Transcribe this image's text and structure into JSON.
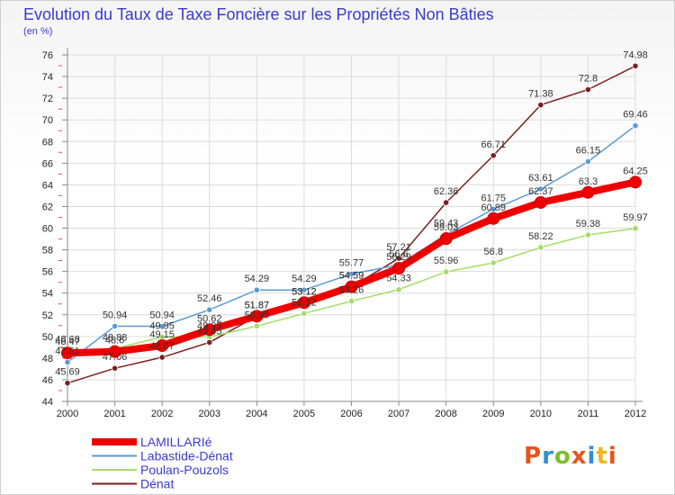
{
  "title": "Evolution du Taux de Taxe Foncière sur les Propriétés Non Bâties",
  "unit": "(en %)",
  "brand": {
    "text": "Proxiti",
    "colors": [
      "#e8541c",
      "#2f8fd6",
      "#7cbd2c",
      "#e8541c",
      "#2f8fd6",
      "#f2b61c",
      "#e8541c"
    ]
  },
  "chart_data": {
    "type": "line",
    "title": "Evolution du Taux de Taxe Foncière sur les Propriétés Non Bâties",
    "ylabel": "(en %)",
    "xlabel": "",
    "x": [
      "2000",
      "2001",
      "2002",
      "2003",
      "2004",
      "2005",
      "2006",
      "2007",
      "2008",
      "2009",
      "2010",
      "2011",
      "2012"
    ],
    "ylim": [
      44,
      76
    ],
    "yticks": [
      44,
      46,
      48,
      50,
      52,
      54,
      56,
      58,
      60,
      62,
      64,
      66,
      68,
      70,
      72,
      74,
      76
    ],
    "grid": true,
    "legend_position": "bottom-left",
    "series": [
      {
        "name": "LAMILLARIé",
        "color": "#ee0000",
        "width": 8,
        "values": [
          48.47,
          48.6,
          49.15,
          50.62,
          51.87,
          53.12,
          54.59,
          56.29,
          59.03,
          60.89,
          62.37,
          63.3,
          64.25
        ],
        "labels": [
          "48.47",
          "48.6",
          "49.15",
          "50.62",
          "51.87",
          "53.12",
          "54.59",
          "56.29",
          "59.03",
          "60.89",
          "62.37",
          "63.3",
          "64.25"
        ]
      },
      {
        "name": "Labastide-Dénat",
        "color": "#5b9bd5",
        "width": 1.5,
        "values": [
          47.61,
          50.94,
          50.94,
          52.46,
          54.29,
          54.29,
          55.77,
          56.6,
          59.43,
          61.75,
          63.61,
          66.15,
          69.46
        ],
        "labels": [
          "47.61",
          "50.94",
          "50.94",
          "52.46",
          "54.29",
          "54.29",
          "55.77",
          "56.6",
          "59.43",
          "61.75",
          "63.61",
          "66.15",
          "69.46"
        ]
      },
      {
        "name": "Poulan-Pouzols",
        "color": "#a6dc6a",
        "width": 1.5,
        "values": [
          48.68,
          48.88,
          49.95,
          49.95,
          50.95,
          52.12,
          53.26,
          54.33,
          55.96,
          56.8,
          58.22,
          59.38,
          59.97
        ],
        "labels": [
          "48.68",
          "48.88",
          "49.95",
          "49.95",
          "50.95",
          "52.12",
          "53.26",
          "54.33",
          "55.96",
          "56.8",
          "58.22",
          "59.38",
          "59.97"
        ]
      },
      {
        "name": "Dénat",
        "color": "#7a2020",
        "width": 1.5,
        "values": [
          45.69,
          47.06,
          48.07,
          49.45,
          51.87,
          53.12,
          54.59,
          57.21,
          62.36,
          66.71,
          71.38,
          72.8,
          74.98
        ],
        "labels": [
          "45.69",
          "47.06",
          "48.07",
          "49.45",
          "51.87",
          "53.12",
          "54.59",
          "57.21",
          "62.36",
          "66.71",
          "71.38",
          "72.8",
          "74.98"
        ]
      }
    ]
  }
}
